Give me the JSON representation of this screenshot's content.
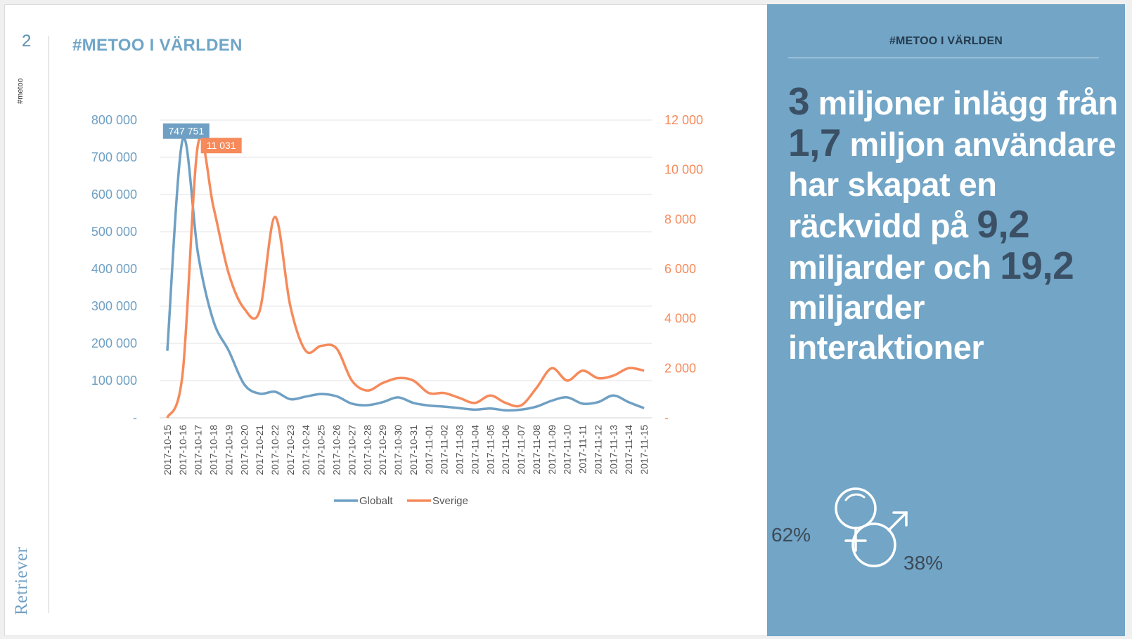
{
  "page": {
    "number": "2",
    "side_tag": "#metoo",
    "logo": "Retriever",
    "title": "#METOO I VÄRLDEN"
  },
  "panel": {
    "title": "#METOO I VÄRLDEN",
    "headline": {
      "n1": "3",
      "t1": " miljoner inlägg från ",
      "n2": "1,7",
      "t2": " miljon användare har skapat en räckvidd på ",
      "n3": "9,2",
      "t3": " miljarder och ",
      "n4": "19,2",
      "t4": " miljarder interaktioner"
    },
    "female_pct": "62%",
    "male_pct": "38%",
    "female_icon": "female-symbol",
    "male_icon": "male-symbol"
  },
  "colors": {
    "globalt": "#6fa0c4",
    "sverige": "#f68a5b",
    "panel_bg": "#72a5c6"
  },
  "chart_data": {
    "type": "line",
    "categories": [
      "2017-10-15",
      "2017-10-16",
      "2017-10-17",
      "2017-10-18",
      "2017-10-19",
      "2017-10-20",
      "2017-10-21",
      "2017-10-22",
      "2017-10-23",
      "2017-10-24",
      "2017-10-25",
      "2017-10-26",
      "2017-10-27",
      "2017-10-28",
      "2017-10-29",
      "2017-10-30",
      "2017-10-31",
      "2017-11-01",
      "2017-11-02",
      "2017-11-03",
      "2017-11-04",
      "2017-11-05",
      "2017-11-06",
      "2017-11-07",
      "2017-11-08",
      "2017-11-09",
      "2017-11-10",
      "2017-11-11",
      "2017-11-12",
      "2017-11-13",
      "2017-11-14",
      "2017-11-15"
    ],
    "series": [
      {
        "name": "Globalt",
        "axis": "left",
        "values": [
          180000,
          747751,
          440000,
          260000,
          180000,
          90000,
          65000,
          70000,
          50000,
          57000,
          64000,
          58000,
          38000,
          34000,
          42000,
          55000,
          40000,
          33000,
          30000,
          26000,
          22000,
          25000,
          20000,
          22000,
          30000,
          46000,
          55000,
          38000,
          42000,
          60000,
          42000,
          26000
        ]
      },
      {
        "name": "Sverige",
        "axis": "right",
        "values": [
          0,
          1800,
          11031,
          8500,
          5800,
          4400,
          4300,
          8100,
          4500,
          2700,
          2900,
          2800,
          1500,
          1100,
          1400,
          1600,
          1500,
          1000,
          1000,
          800,
          600,
          900,
          600,
          500,
          1200,
          2000,
          1500,
          1900,
          1600,
          1700,
          2000,
          1900
        ]
      }
    ],
    "y_left": {
      "min": 0,
      "max": 800000,
      "ticks": [
        "-",
        "100 000",
        "200 000",
        "300 000",
        "400 000",
        "500 000",
        "600 000",
        "700 000",
        "800 000"
      ]
    },
    "y_right": {
      "min": 0,
      "max": 12000,
      "ticks": [
        "-",
        "2 000",
        "4 000",
        "6 000",
        "8 000",
        "10 000",
        "12 000"
      ]
    },
    "annotations": [
      {
        "series": "Globalt",
        "text": "747 751"
      },
      {
        "series": "Sverige",
        "text": "11 031"
      }
    ],
    "legend": [
      "Globalt",
      "Sverige"
    ],
    "legend_position": "bottom",
    "grid": true
  }
}
